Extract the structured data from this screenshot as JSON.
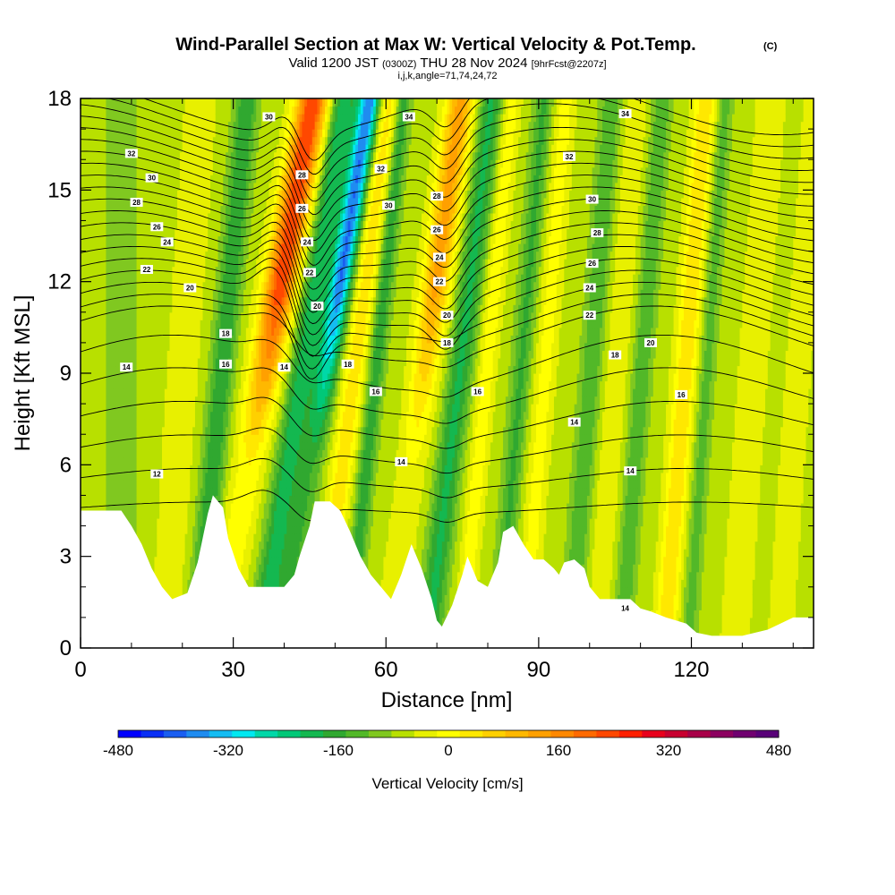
{
  "chart_data": {
    "type": "heatmap",
    "title": "Wind-Parallel Section at Max W: Vertical Velocity & Pot.Temp.",
    "title_mark": "(C)",
    "subtitle": {
      "valid": "Valid 1200 JST",
      "utc": "(0300Z)",
      "date": "THU 28 Nov 2024",
      "forecast": "[9hrFcst@2207z]"
    },
    "indices": "i,j,k,angle=71,74,24,72",
    "xlabel": "Distance [nm]",
    "ylabel": "Height [Kft MSL]",
    "xlim": [
      0,
      144
    ],
    "ylim": [
      0,
      18
    ],
    "x_ticks": [
      "0",
      "30",
      "60",
      "90",
      "120"
    ],
    "y_ticks": [
      "0",
      "3",
      "6",
      "9",
      "12",
      "15",
      "18"
    ],
    "colorbar": {
      "label": "Vertical Velocity [cm/s]",
      "range": [
        -480,
        480
      ],
      "step": 40,
      "tick_labels": [
        "-480",
        "-320",
        "-160",
        "0",
        "160",
        "320",
        "480"
      ],
      "colors": [
        "#0000ff",
        "#0a2ff5",
        "#1a5ef0",
        "#1f8cf0",
        "#14bcf2",
        "#00e8f0",
        "#00d8a8",
        "#00c878",
        "#14b850",
        "#30a830",
        "#52b828",
        "#80c820",
        "#b8e000",
        "#e8f000",
        "#ffff00",
        "#ffe800",
        "#ffd000",
        "#ffb800",
        "#ffa000",
        "#ff8800",
        "#ff6a00",
        "#ff4800",
        "#ff2000",
        "#e8001c",
        "#c80030",
        "#a80048",
        "#8c0060",
        "#700070",
        "#580078"
      ]
    },
    "isentropes_label": "Pot.Temp.",
    "contour_labels": [
      {
        "text": "32",
        "x": 10,
        "y": 16.2
      },
      {
        "text": "30",
        "x": 14,
        "y": 15.4
      },
      {
        "text": "28",
        "x": 11,
        "y": 14.6
      },
      {
        "text": "26",
        "x": 15,
        "y": 13.8
      },
      {
        "text": "24",
        "x": 17,
        "y": 13.3
      },
      {
        "text": "22",
        "x": 13,
        "y": 12.4
      },
      {
        "text": "20",
        "x": 21.5,
        "y": 11.8
      },
      {
        "text": "18",
        "x": 28.5,
        "y": 10.3
      },
      {
        "text": "16",
        "x": 28.5,
        "y": 9.3
      },
      {
        "text": "14",
        "x": 9,
        "y": 9.2
      },
      {
        "text": "12",
        "x": 15,
        "y": 5.7
      },
      {
        "text": "30",
        "x": 37,
        "y": 17.4
      },
      {
        "text": "28",
        "x": 43.5,
        "y": 15.5
      },
      {
        "text": "26",
        "x": 43.5,
        "y": 14.4
      },
      {
        "text": "24",
        "x": 44.5,
        "y": 13.3
      },
      {
        "text": "22",
        "x": 45,
        "y": 12.3
      },
      {
        "text": "20",
        "x": 46.5,
        "y": 11.2
      },
      {
        "text": "14",
        "x": 40,
        "y": 9.2
      },
      {
        "text": "18",
        "x": 52.5,
        "y": 9.3
      },
      {
        "text": "16",
        "x": 58,
        "y": 8.4
      },
      {
        "text": "14",
        "x": 63,
        "y": 6.1
      },
      {
        "text": "34",
        "x": 64.5,
        "y": 17.4
      },
      {
        "text": "32",
        "x": 59,
        "y": 15.7
      },
      {
        "text": "30",
        "x": 60.5,
        "y": 14.5
      },
      {
        "text": "28",
        "x": 70,
        "y": 14.8
      },
      {
        "text": "26",
        "x": 70,
        "y": 13.7
      },
      {
        "text": "24",
        "x": 70.5,
        "y": 12.8
      },
      {
        "text": "22",
        "x": 70.5,
        "y": 12.0
      },
      {
        "text": "20",
        "x": 72,
        "y": 10.9
      },
      {
        "text": "18",
        "x": 72,
        "y": 10.0
      },
      {
        "text": "16",
        "x": 78,
        "y": 8.4
      },
      {
        "text": "34",
        "x": 107,
        "y": 17.5
      },
      {
        "text": "32",
        "x": 96,
        "y": 16.1
      },
      {
        "text": "30",
        "x": 100.5,
        "y": 14.7
      },
      {
        "text": "28",
        "x": 101.5,
        "y": 13.6
      },
      {
        "text": "26",
        "x": 100.5,
        "y": 12.6
      },
      {
        "text": "24",
        "x": 100,
        "y": 11.8
      },
      {
        "text": "22",
        "x": 100,
        "y": 10.9
      },
      {
        "text": "20",
        "x": 112,
        "y": 10.0
      },
      {
        "text": "18",
        "x": 105,
        "y": 9.6
      },
      {
        "text": "16",
        "x": 118,
        "y": 8.3
      },
      {
        "text": "14",
        "x": 97,
        "y": 7.4
      },
      {
        "text": "14",
        "x": 108,
        "y": 5.8
      },
      {
        "text": "14",
        "x": 107,
        "y": 1.3
      }
    ]
  }
}
